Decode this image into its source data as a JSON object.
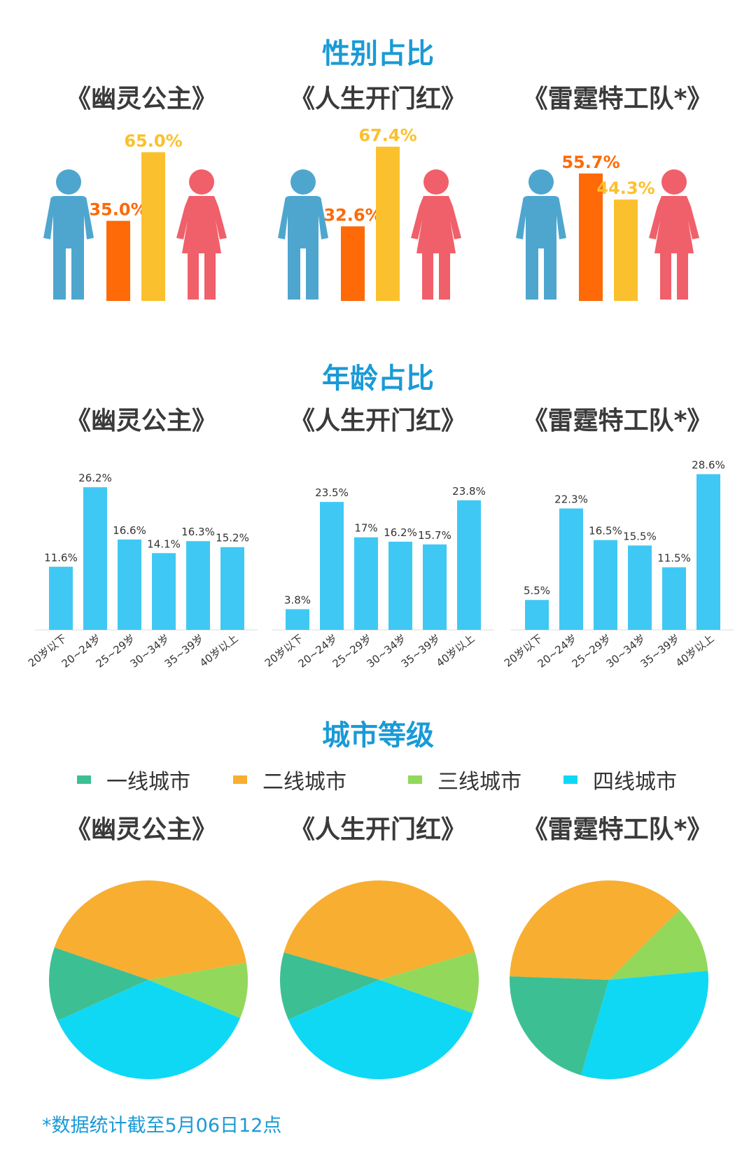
{
  "sections": {
    "gender": "性别占比",
    "age": "年龄占比",
    "city": "城市等级"
  },
  "movies": [
    "《幽灵公主》",
    "《人生开门红》",
    "《雷霆特工队*》"
  ],
  "colors": {
    "title": "#1a9ad6",
    "male_figure": "#4ea6cf",
    "female_figure": "#f0606a",
    "male_bar": "#fd6a07",
    "female_bar": "#fbc02d",
    "age_bar": "#40c8f4",
    "tier1": "#3dbf94",
    "tier2": "#f8ae30",
    "tier3": "#92d85b",
    "tier4": "#0fd8f5"
  },
  "legend": [
    "一线城市",
    "二线城市",
    "三线城市",
    "四线城市"
  ],
  "footnote": "*数据统计截至5月06日12点",
  "chart_data": [
    {
      "type": "bar",
      "title": "性别占比",
      "categories": [
        "男",
        "女"
      ],
      "series": [
        {
          "name": "《幽灵公主》",
          "values": [
            35.0,
            65.0
          ],
          "labels": [
            "35.0%",
            "65.0%"
          ]
        },
        {
          "name": "《人生开门红》",
          "values": [
            32.6,
            67.4
          ],
          "labels": [
            "32.6%",
            "67.4%"
          ]
        },
        {
          "name": "《雷霆特工队*》",
          "values": [
            55.7,
            44.3
          ],
          "labels": [
            "55.7%",
            "44.3%"
          ]
        }
      ]
    },
    {
      "type": "bar",
      "title": "年龄占比",
      "categories": [
        "20岁以下",
        "20~24岁",
        "25~29岁",
        "30~34岁",
        "35~39岁",
        "40岁以上"
      ],
      "series": [
        {
          "name": "《幽灵公主》",
          "values": [
            11.6,
            26.2,
            16.6,
            14.1,
            16.3,
            15.2
          ],
          "labels": [
            "11.6%",
            "26.2%",
            "16.6%",
            "14.1%",
            "16.3%",
            "15.2%"
          ]
        },
        {
          "name": "《人生开门红》",
          "values": [
            3.8,
            23.5,
            17,
            16.2,
            15.7,
            23.8
          ],
          "labels": [
            "3.8%",
            "23.5%",
            "17%",
            "16.2%",
            "15.7%",
            "23.8%"
          ]
        },
        {
          "name": "《雷霆特工队*》",
          "values": [
            5.5,
            22.3,
            16.5,
            15.5,
            11.5,
            28.6
          ],
          "labels": [
            "5.5%",
            "22.3%",
            "16.5%",
            "15.5%",
            "11.5%",
            "28.6%"
          ]
        }
      ]
    },
    {
      "type": "pie",
      "title": "城市等级",
      "categories": [
        "一线城市",
        "二线城市",
        "三线城市",
        "四线城市"
      ],
      "series": [
        {
          "name": "《幽灵公主》",
          "values": [
            12,
            42,
            9,
            37
          ]
        },
        {
          "name": "《人生开门红》",
          "values": [
            11,
            41,
            10,
            38
          ]
        },
        {
          "name": "《雷霆特工队*》",
          "values": [
            21,
            37,
            11,
            31
          ]
        }
      ]
    }
  ]
}
